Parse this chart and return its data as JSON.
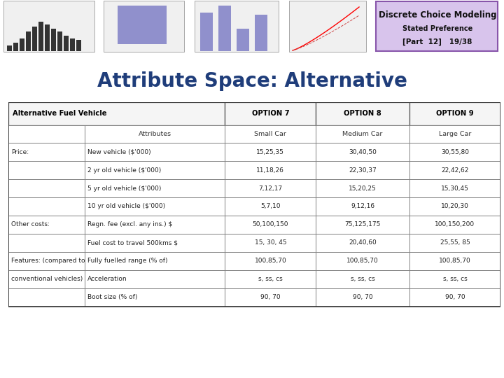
{
  "title": "Attribute Space: Alternative",
  "title_color": "#1F3D7A",
  "slide_bg": "#FFFFFF",
  "top_bar_color": "#6B3FA0",
  "left_bar_color": "#6B3FA0",
  "table_header_row": [
    "Alternative Fuel Vehicle",
    "OPTION 7",
    "OPTION 8",
    "OPTION 9"
  ],
  "table_subheader_row": [
    "Attributes",
    "Small Car",
    "Medium Car",
    "Large Car"
  ],
  "table_rows": [
    [
      "Price:",
      "New vehicle ($'000)",
      "15,25,35",
      "30,40,50",
      "30,55,80"
    ],
    [
      "",
      "2 yr old vehicle ($'000)",
      "11,18,26",
      "22,30,37",
      "22,42,62"
    ],
    [
      "",
      "5 yr old vehicle ($'000)",
      "7,12,17",
      "15,20,25",
      "15,30,45"
    ],
    [
      "",
      "10 yr old vehicle ($'000)",
      "5,7,10",
      "9,12,16",
      "10,20,30"
    ],
    [
      "Other costs:",
      "Regn. fee (excl. any ins.) $",
      "50,100,150",
      "75,125,175",
      "100,150,200"
    ],
    [
      "",
      "Fuel cost to travel 500kms $",
      "15, 30, 45",
      "20,40,60",
      "25,55, 85"
    ],
    [
      "Features: (compared to",
      "Fully fuelled range (% of)",
      "100,85,70",
      "100,85,70",
      "100,85,70"
    ],
    [
      "conventional vehicles)",
      "Acceleration",
      "s, ss, cs",
      "s, ss, cs",
      "s, ss, cs"
    ],
    [
      "",
      "Boot size (% of)",
      "90, 70",
      "90, 70",
      "90, 70"
    ]
  ],
  "dcm_title": "Discrete Choice Modeling",
  "dcm_subtitle": "Stated Preference",
  "dcm_part": "[Part  12]   19/38",
  "dcm_box_color": "#D8C4EC",
  "dcm_border_color": "#8855AA"
}
